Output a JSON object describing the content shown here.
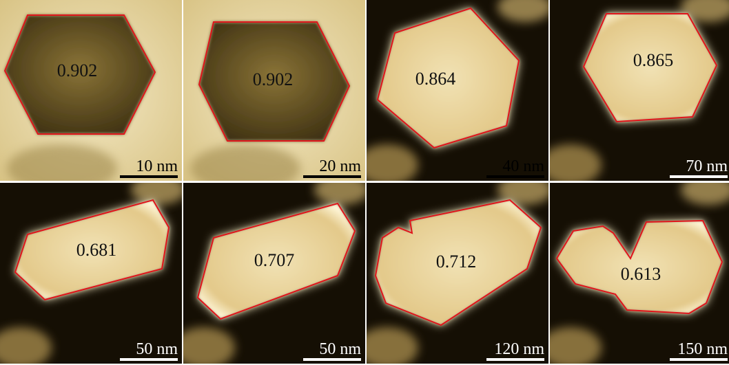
{
  "panels": [
    {
      "value": "0.902",
      "scale": "10 nm"
    },
    {
      "value": "0.902",
      "scale": "20 nm"
    },
    {
      "value": "0.864",
      "scale": "40 nm"
    },
    {
      "value": "0.865",
      "scale": "70 nm"
    },
    {
      "value": "0.681",
      "scale": "50 nm"
    },
    {
      "value": "0.707",
      "scale": "50 nm"
    },
    {
      "value": "0.712",
      "scale": "120 nm"
    },
    {
      "value": "0.613",
      "scale": "150 nm"
    }
  ]
}
